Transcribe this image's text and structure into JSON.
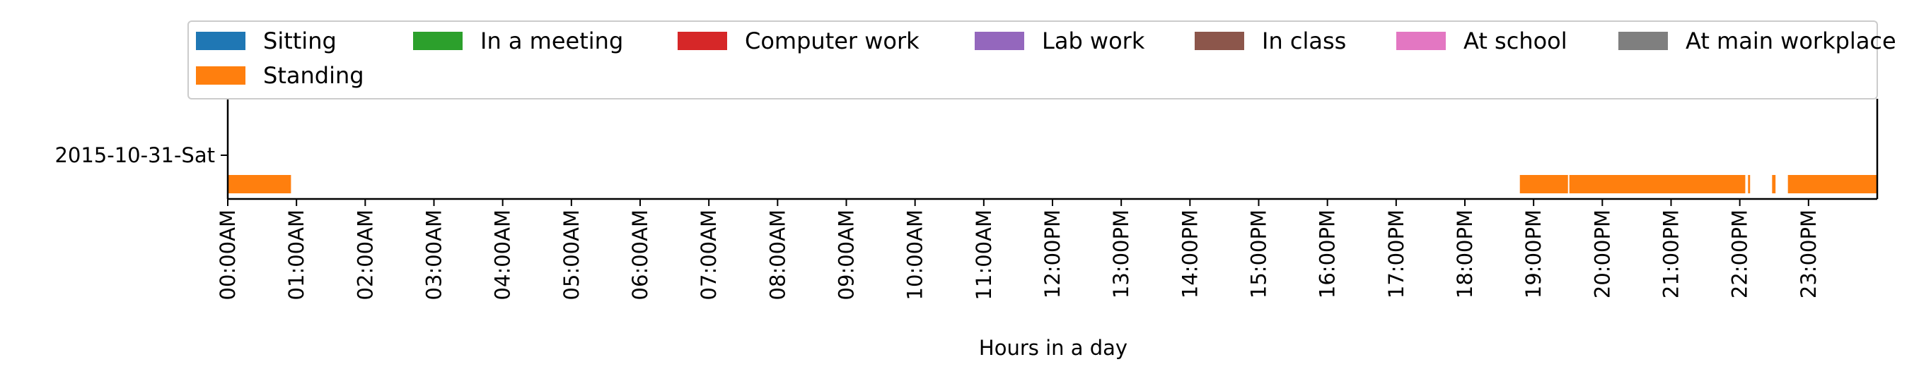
{
  "chart_data": {
    "type": "timeline",
    "xlabel": "Hours in a day",
    "ylabel": "",
    "title": "",
    "xlim": [
      0,
      24
    ],
    "x_ticks": [
      {
        "value": 0,
        "label": "00:00AM"
      },
      {
        "value": 1,
        "label": "01:00AM"
      },
      {
        "value": 2,
        "label": "02:00AM"
      },
      {
        "value": 3,
        "label": "03:00AM"
      },
      {
        "value": 4,
        "label": "04:00AM"
      },
      {
        "value": 5,
        "label": "05:00AM"
      },
      {
        "value": 6,
        "label": "06:00AM"
      },
      {
        "value": 7,
        "label": "07:00AM"
      },
      {
        "value": 8,
        "label": "08:00AM"
      },
      {
        "value": 9,
        "label": "09:00AM"
      },
      {
        "value": 10,
        "label": "10:00AM"
      },
      {
        "value": 11,
        "label": "11:00AM"
      },
      {
        "value": 12,
        "label": "12:00PM"
      },
      {
        "value": 13,
        "label": "13:00PM"
      },
      {
        "value": 14,
        "label": "14:00PM"
      },
      {
        "value": 15,
        "label": "15:00PM"
      },
      {
        "value": 16,
        "label": "16:00PM"
      },
      {
        "value": 17,
        "label": "17:00PM"
      },
      {
        "value": 18,
        "label": "18:00PM"
      },
      {
        "value": 19,
        "label": "19:00PM"
      },
      {
        "value": 20,
        "label": "20:00PM"
      },
      {
        "value": 21,
        "label": "21:00PM"
      },
      {
        "value": 22,
        "label": "22:00PM"
      },
      {
        "value": 23,
        "label": "23:00PM"
      }
    ],
    "y_categories": [
      "2015-10-31-Sat"
    ],
    "legend": {
      "placement": "top",
      "entries": [
        {
          "name": "Sitting",
          "color": "#1f77b4"
        },
        {
          "name": "In a meeting",
          "color": "#2ca02c"
        },
        {
          "name": "Computer work",
          "color": "#d62728"
        },
        {
          "name": "Lab work",
          "color": "#9467bd"
        },
        {
          "name": "In class",
          "color": "#8c564b"
        },
        {
          "name": "At school",
          "color": "#e377c2"
        },
        {
          "name": "At main workplace",
          "color": "#7f7f7f"
        },
        {
          "name": "Standing",
          "color": "#ff7f0e"
        }
      ]
    },
    "series": [
      {
        "name": "Standing",
        "color": "#ff7f0e",
        "row": "2015-10-31-Sat",
        "intervals": [
          [
            0.0,
            0.92
          ],
          [
            18.8,
            19.5
          ],
          [
            19.52,
            22.08
          ],
          [
            22.12,
            22.15
          ],
          [
            22.47,
            22.52
          ],
          [
            22.7,
            23.99
          ]
        ]
      }
    ]
  }
}
